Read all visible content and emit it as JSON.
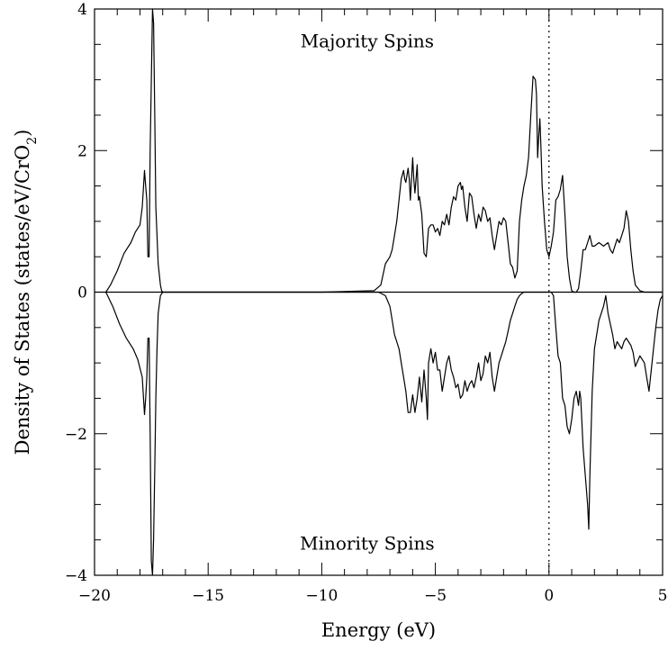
{
  "chart_data": {
    "type": "line",
    "title": "",
    "xlabel": "Energy (eV)",
    "ylabel": "Density of States (states/eV/CrO",
    "ylabel_sub": "2",
    "ylabel_close": ")",
    "xlim": [
      -20,
      5
    ],
    "ylim": [
      -4,
      4
    ],
    "x_ticks": [
      -20,
      -15,
      -10,
      -5,
      0,
      5
    ],
    "x_tick_labels": [
      "−20",
      "−15",
      "−10",
      "−5",
      "0",
      "5"
    ],
    "y_ticks": [
      -4,
      -2,
      0,
      2,
      4
    ],
    "y_tick_labels": [
      "−4",
      "−2",
      "0",
      "2",
      "4"
    ],
    "x_minor_step": 1,
    "y_minor_step": 0.5,
    "reference_lines": [
      {
        "axis": "y",
        "value": 0,
        "style": "solid"
      },
      {
        "axis": "x",
        "value": 0,
        "style": "dotted"
      }
    ],
    "annotations": [
      {
        "text": "Majority Spins",
        "x": -8,
        "y": 3.55
      },
      {
        "text": "Minority Spins",
        "x": -8,
        "y": -3.55
      }
    ],
    "grid": false,
    "legend": "none",
    "series": [
      {
        "x": [
          -19.5,
          -19.3,
          -19.0,
          -18.7,
          -18.4,
          -18.2,
          -18.0,
          -17.9,
          -17.8,
          -17.75,
          -17.7,
          -17.65,
          -17.6,
          -17.55,
          -17.5,
          -17.45,
          -17.4,
          -17.35,
          -17.3,
          -17.2,
          -17.1,
          -17.05,
          -17.0,
          -16.5,
          -10,
          -7.7,
          -7.4,
          -7.2,
          -7.0,
          -6.9,
          -6.8,
          -6.7,
          -6.6,
          -6.5,
          -6.4,
          -6.35,
          -6.3,
          -6.2,
          -6.15,
          -6.1,
          -6.0,
          -5.95,
          -5.9,
          -5.8,
          -5.75,
          -5.7,
          -5.6,
          -5.5,
          -5.4,
          -5.3,
          -5.2,
          -5.1,
          -5.0,
          -4.9,
          -4.8,
          -4.7,
          -4.6,
          -4.5,
          -4.4,
          -4.3,
          -4.2,
          -4.1,
          -4.0,
          -3.9,
          -3.85,
          -3.8,
          -3.7,
          -3.6,
          -3.5,
          -3.4,
          -3.3,
          -3.2,
          -3.1,
          -3.0,
          -2.9,
          -2.8,
          -2.7,
          -2.6,
          -2.5,
          -2.4,
          -2.3,
          -2.2,
          -2.1,
          -2.0,
          -1.9,
          -1.8,
          -1.7,
          -1.6,
          -1.5,
          -1.4,
          -1.3,
          -1.2,
          -1.1,
          -1.0,
          -0.9,
          -0.8,
          -0.7,
          -0.6,
          -0.55,
          -0.5,
          -0.45,
          -0.4,
          -0.35,
          -0.3,
          -0.2,
          -0.1,
          0.0,
          0.1,
          0.2,
          0.3,
          0.4,
          0.5,
          0.6,
          0.7,
          0.8,
          0.9,
          1.0,
          1.1,
          1.2,
          1.3,
          1.4,
          1.5,
          1.6,
          1.7,
          1.8,
          1.9,
          2.0,
          2.2,
          2.4,
          2.6,
          2.7,
          2.8,
          2.9,
          3.0,
          3.1,
          3.2,
          3.3,
          3.4,
          3.5,
          3.6,
          3.7,
          3.8,
          4.0,
          4.2,
          4.4,
          5.0
        ],
        "values": [
          0.0,
          0.1,
          0.3,
          0.55,
          0.7,
          0.85,
          0.95,
          1.2,
          1.72,
          1.5,
          1.3,
          0.5,
          0.5,
          2.0,
          3.0,
          4.0,
          3.8,
          2.5,
          1.2,
          0.4,
          0.1,
          0.02,
          0.0,
          0.0,
          0.0,
          0.02,
          0.1,
          0.4,
          0.5,
          0.6,
          0.8,
          1.0,
          1.3,
          1.6,
          1.72,
          1.6,
          1.55,
          1.75,
          1.6,
          1.3,
          1.9,
          1.6,
          1.4,
          1.8,
          1.3,
          1.35,
          1.1,
          0.55,
          0.5,
          0.9,
          0.95,
          0.95,
          0.85,
          0.9,
          0.8,
          1.0,
          0.95,
          1.1,
          0.95,
          1.2,
          1.35,
          1.3,
          1.5,
          1.55,
          1.45,
          1.5,
          1.2,
          1.0,
          1.4,
          1.35,
          1.1,
          0.9,
          1.1,
          1.0,
          1.2,
          1.15,
          1.0,
          1.05,
          0.8,
          0.6,
          0.8,
          1.0,
          0.95,
          1.05,
          1.0,
          0.7,
          0.4,
          0.35,
          0.2,
          0.3,
          1.0,
          1.3,
          1.5,
          1.65,
          1.9,
          2.5,
          3.05,
          3.0,
          2.8,
          1.9,
          2.2,
          2.45,
          2.0,
          1.5,
          1.0,
          0.6,
          0.5,
          0.65,
          0.85,
          1.3,
          1.35,
          1.45,
          1.65,
          1.1,
          0.5,
          0.2,
          0.02,
          0.0,
          0.0,
          0.05,
          0.3,
          0.6,
          0.6,
          0.7,
          0.8,
          0.65,
          0.65,
          0.7,
          0.65,
          0.7,
          0.6,
          0.55,
          0.65,
          0.75,
          0.7,
          0.8,
          0.9,
          1.15,
          1.0,
          0.6,
          0.3,
          0.1,
          0.02,
          0.0,
          0.0,
          0.0
        ]
      },
      {
        "x": [
          -19.5,
          -19.2,
          -18.9,
          -18.6,
          -18.3,
          -18.1,
          -17.9,
          -17.8,
          -17.75,
          -17.7,
          -17.65,
          -17.6,
          -17.55,
          -17.5,
          -17.45,
          -17.4,
          -17.35,
          -17.3,
          -17.25,
          -17.2,
          -17.1,
          -17.0,
          -16.5,
          -10,
          -7.5,
          -7.2,
          -7.0,
          -6.8,
          -6.6,
          -6.5,
          -6.4,
          -6.3,
          -6.2,
          -6.1,
          -6.0,
          -5.9,
          -5.8,
          -5.7,
          -5.6,
          -5.5,
          -5.4,
          -5.35,
          -5.3,
          -5.2,
          -5.1,
          -5.0,
          -4.9,
          -4.8,
          -4.7,
          -4.6,
          -4.5,
          -4.4,
          -4.3,
          -4.2,
          -4.1,
          -4.0,
          -3.9,
          -3.8,
          -3.7,
          -3.6,
          -3.5,
          -3.4,
          -3.3,
          -3.2,
          -3.1,
          -3.0,
          -2.9,
          -2.8,
          -2.7,
          -2.6,
          -2.5,
          -2.4,
          -2.3,
          -2.2,
          -2.1,
          -2.0,
          -1.9,
          -1.8,
          -1.7,
          -1.6,
          -1.5,
          -1.4,
          -1.3,
          -1.2,
          -1.1,
          -1.0,
          -0.9,
          -0.8,
          -0.7,
          -0.6,
          -0.5,
          -0.4,
          -0.3,
          -0.2,
          -0.1,
          0.0,
          0.1,
          0.2,
          0.3,
          0.4,
          0.5,
          0.6,
          0.7,
          0.8,
          0.9,
          1.0,
          1.1,
          1.2,
          1.3,
          1.35,
          1.4,
          1.5,
          1.6,
          1.7,
          1.75,
          1.8,
          1.85,
          1.9,
          2.0,
          2.2,
          2.4,
          2.5,
          2.6,
          2.8,
          2.9,
          3.0,
          3.1,
          3.2,
          3.3,
          3.4,
          3.5,
          3.6,
          3.7,
          3.8,
          4.0,
          4.2,
          4.3,
          4.4,
          4.5,
          4.6,
          4.7,
          4.8,
          4.9,
          5.0
        ],
        "values": [
          0.0,
          -0.2,
          -0.45,
          -0.65,
          -0.8,
          -0.95,
          -1.2,
          -1.73,
          -1.5,
          -1.2,
          -0.65,
          -0.65,
          -2.0,
          -3.8,
          -4.0,
          -3.5,
          -2.5,
          -1.5,
          -0.8,
          -0.3,
          -0.05,
          0.0,
          0.0,
          0.0,
          0.0,
          -0.05,
          -0.2,
          -0.6,
          -0.8,
          -1.0,
          -1.2,
          -1.4,
          -1.7,
          -1.7,
          -1.45,
          -1.7,
          -1.5,
          -1.2,
          -1.55,
          -1.1,
          -1.5,
          -1.8,
          -1.0,
          -0.8,
          -1.0,
          -0.85,
          -1.1,
          -1.1,
          -1.4,
          -1.2,
          -1.0,
          -0.9,
          -1.1,
          -1.2,
          -1.35,
          -1.3,
          -1.5,
          -1.45,
          -1.25,
          -1.4,
          -1.3,
          -1.25,
          -1.35,
          -1.2,
          -1.0,
          -1.25,
          -1.15,
          -0.9,
          -1.0,
          -0.85,
          -1.2,
          -1.4,
          -1.2,
          -1.0,
          -0.9,
          -0.8,
          -0.7,
          -0.55,
          -0.4,
          -0.3,
          -0.2,
          -0.1,
          -0.05,
          -0.02,
          0.0,
          0.0,
          0.0,
          0.0,
          0.0,
          0.0,
          0.0,
          0.0,
          0.0,
          0.0,
          0.0,
          0.0,
          0.0,
          -0.05,
          -0.5,
          -0.9,
          -1.0,
          -1.5,
          -1.6,
          -1.9,
          -2.0,
          -1.8,
          -1.5,
          -1.4,
          -1.6,
          -1.4,
          -1.5,
          -2.2,
          -2.6,
          -3.0,
          -3.35,
          -2.6,
          -2.0,
          -1.4,
          -0.8,
          -0.4,
          -0.2,
          -0.05,
          -0.3,
          -0.6,
          -0.8,
          -0.7,
          -0.75,
          -0.8,
          -0.7,
          -0.65,
          -0.7,
          -0.75,
          -0.85,
          -1.05,
          -0.9,
          -1.0,
          -1.2,
          -1.4,
          -1.1,
          -0.8,
          -0.5,
          -0.25,
          -0.1,
          -0.05
        ]
      }
    ]
  }
}
